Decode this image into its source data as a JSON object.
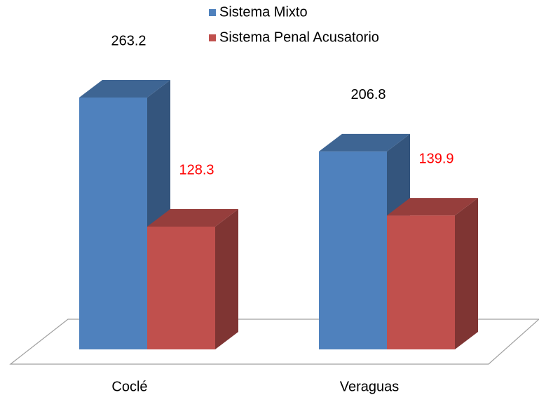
{
  "chart_data": {
    "type": "bar3d",
    "categories": [
      "Coclé",
      "Veraguas"
    ],
    "series": [
      {
        "name": "Sistema Mixto",
        "color": "#4f81bd",
        "label_color": "#000000",
        "values": [
          263.2,
          206.8
        ]
      },
      {
        "name": "Sistema Penal Acusatorio",
        "color": "#c0504d",
        "label_color": "#ff0000",
        "values": [
          128.3,
          139.9
        ]
      }
    ],
    "legend": "top"
  }
}
